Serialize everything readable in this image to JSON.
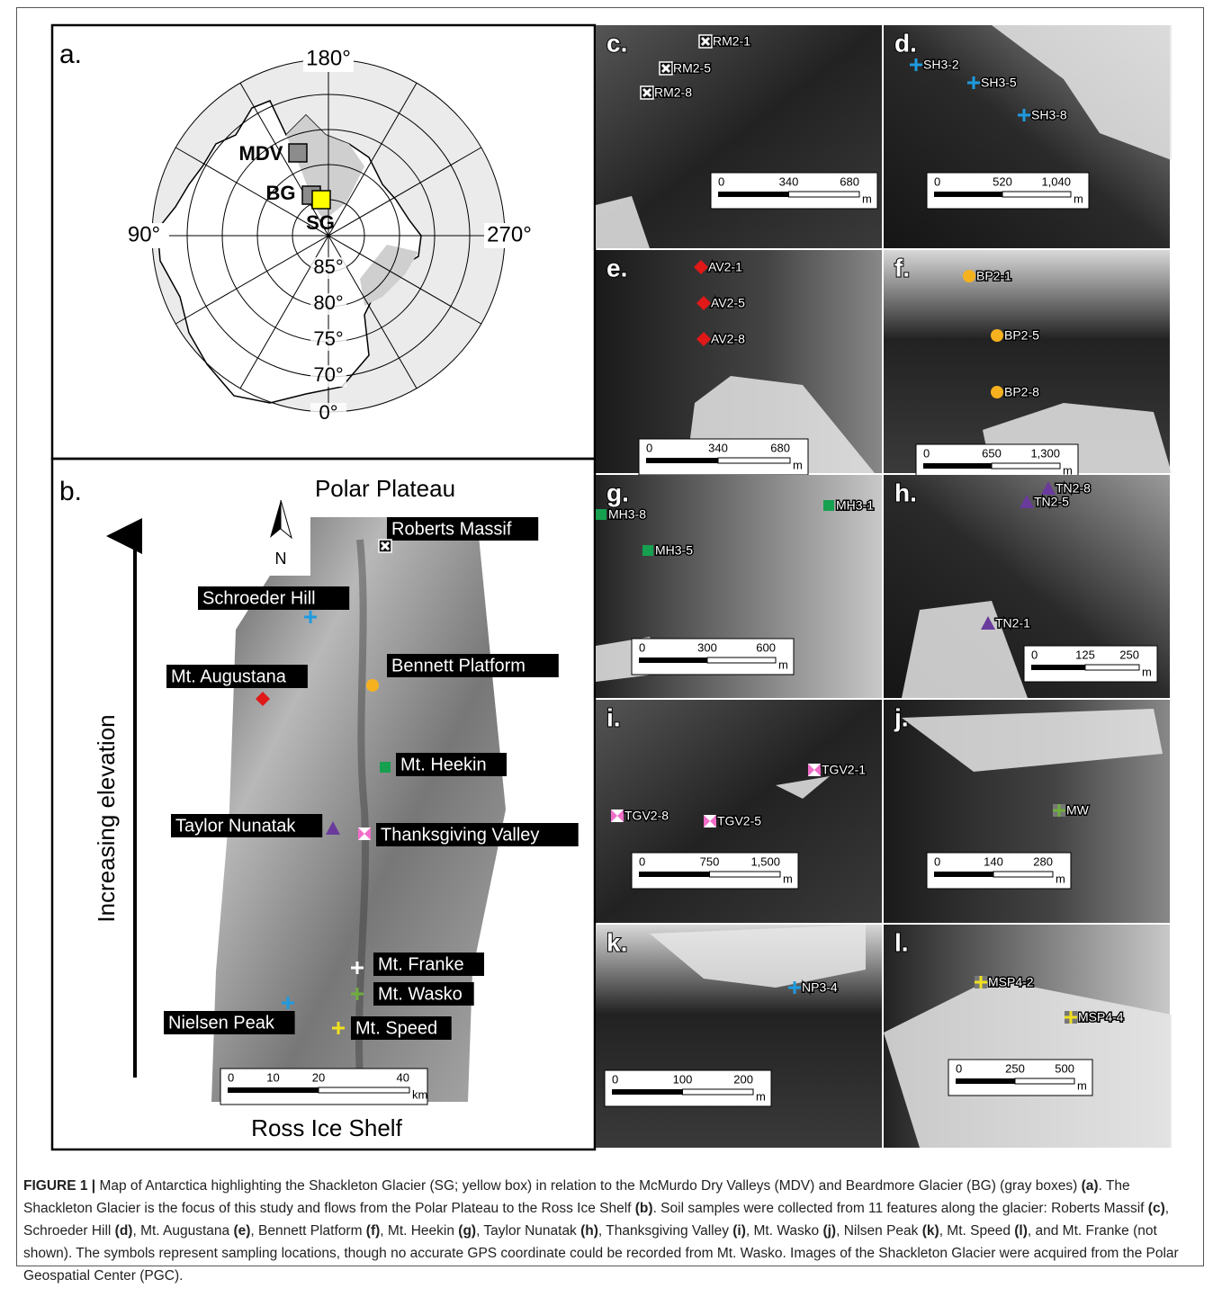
{
  "panel_a": {
    "label": "a.",
    "lon_labels": [
      "180°",
      "90°",
      "270°"
    ],
    "lat_labels": [
      "85°",
      "80°",
      "75°",
      "70°",
      "0°"
    ],
    "boxes": [
      {
        "name": "MDV",
        "color": "#8c8c8c"
      },
      {
        "name": "BG",
        "color": "#8c8c8c"
      },
      {
        "name": "SG",
        "color": "#ffff00"
      }
    ]
  },
  "panel_b": {
    "label": "b.",
    "top": "Polar Plateau",
    "bottom": "Ross Ice Shelf",
    "axis": "Increasing elevation",
    "north": "N",
    "sites": [
      {
        "name": "Roberts Massif",
        "marker": "boxed-x",
        "color": "#ffffff"
      },
      {
        "name": "Schroeder Hill",
        "marker": "plus",
        "color": "#1e9be0"
      },
      {
        "name": "Mt. Augustana",
        "marker": "diamond",
        "color": "#e01818"
      },
      {
        "name": "Bennett Platform",
        "marker": "circle",
        "color": "#f5b21e"
      },
      {
        "name": "Mt. Heekin",
        "marker": "square",
        "color": "#16a050"
      },
      {
        "name": "Taylor Nunatak",
        "marker": "triangle",
        "color": "#6a3b9c"
      },
      {
        "name": "Thanksgiving Valley",
        "marker": "bowtie",
        "color": "#f06ec8"
      },
      {
        "name": "Mt. Franke",
        "marker": "plus",
        "color": "#ffffff"
      },
      {
        "name": "Mt. Wasko",
        "marker": "plus",
        "color": "#6fae3e"
      },
      {
        "name": "Nielsen Peak",
        "marker": "plus",
        "color": "#1e9be0"
      },
      {
        "name": "Mt. Speed",
        "marker": "plus",
        "color": "#f0e020"
      }
    ],
    "scale": {
      "ticks": [
        "0",
        "10",
        "20",
        "40"
      ],
      "unit": "km"
    }
  },
  "panels": [
    {
      "label": "c.",
      "marker": "boxed-x",
      "color": "#ffffff",
      "samples": [
        "RM2-1",
        "RM2-5",
        "RM2-8"
      ],
      "scale": [
        "0",
        "340",
        "680"
      ],
      "unit": "m"
    },
    {
      "label": "d.",
      "marker": "plus",
      "color": "#1e9be0",
      "samples": [
        "SH3-2",
        "SH3-5",
        "SH3-8"
      ],
      "scale": [
        "0",
        "520",
        "1,040"
      ],
      "unit": "m"
    },
    {
      "label": "e.",
      "marker": "diamond",
      "color": "#e01818",
      "samples": [
        "AV2-1",
        "AV2-5",
        "AV2-8"
      ],
      "scale": [
        "0",
        "340",
        "680"
      ],
      "unit": "m"
    },
    {
      "label": "f.",
      "marker": "circle",
      "color": "#f5b21e",
      "samples": [
        "BP2-1",
        "BP2-5",
        "BP2-8"
      ],
      "scale": [
        "0",
        "650",
        "1,300"
      ],
      "unit": "m"
    },
    {
      "label": "g.",
      "marker": "square",
      "color": "#16a050",
      "samples": [
        "MH3-8",
        "MH3-5",
        "MH3-1"
      ],
      "scale": [
        "0",
        "300",
        "600"
      ],
      "unit": "m"
    },
    {
      "label": "h.",
      "marker": "triangle",
      "color": "#6a3b9c",
      "samples": [
        "TN2-8",
        "TN2-5",
        "TN2-1"
      ],
      "scale": [
        "0",
        "125",
        "250"
      ],
      "unit": "m"
    },
    {
      "label": "i.",
      "marker": "bowtie",
      "color": "#f06ec8",
      "samples": [
        "TGV2-1",
        "TGV2-8",
        "TGV2-5"
      ],
      "scale": [
        "0",
        "750",
        "1,500"
      ],
      "unit": "m"
    },
    {
      "label": "j.",
      "marker": "boxed-plus",
      "color": "#6fae3e",
      "samples": [
        "MW"
      ],
      "scale": [
        "0",
        "140",
        "280"
      ],
      "unit": "m"
    },
    {
      "label": "k.",
      "marker": "plus",
      "color": "#1e9be0",
      "samples": [
        "NP3-4"
      ],
      "scale": [
        "0",
        "100",
        "200"
      ],
      "unit": "m"
    },
    {
      "label": "l.",
      "marker": "boxed-plus",
      "color": "#f0e020",
      "samples": [
        "MSP4-2",
        "MSP4-4"
      ],
      "scale": [
        "0",
        "250",
        "500"
      ],
      "unit": "m"
    }
  ],
  "caption": [
    {
      "text": "FIGURE 1 |",
      "bold": true
    },
    {
      "text": " Map of Antarctica highlighting the Shackleton Glacier (SG; yellow box) in relation to the McMurdo Dry Valleys (MDV) and Beardmore Glacier (BG) (gray boxes) ",
      "bold": false
    },
    {
      "text": "(a)",
      "bold": true
    },
    {
      "text": ". The Shackleton Glacier is the focus of this study and flows from the Polar Plateau to the Ross Ice Shelf ",
      "bold": false
    },
    {
      "text": "(b)",
      "bold": true
    },
    {
      "text": ". Soil samples were collected from 11 features along the glacier: Roberts Massif ",
      "bold": false
    },
    {
      "text": "(c)",
      "bold": true
    },
    {
      "text": ", Schroeder Hill ",
      "bold": false
    },
    {
      "text": "(d)",
      "bold": true
    },
    {
      "text": ", Mt. Augustana ",
      "bold": false
    },
    {
      "text": "(e)",
      "bold": true
    },
    {
      "text": ", Bennett Platform ",
      "bold": false
    },
    {
      "text": "(f)",
      "bold": true
    },
    {
      "text": ", Mt. Heekin ",
      "bold": false
    },
    {
      "text": "(g)",
      "bold": true
    },
    {
      "text": ", Taylor Nunatak ",
      "bold": false
    },
    {
      "text": "(h)",
      "bold": true
    },
    {
      "text": ", Thanksgiving Valley ",
      "bold": false
    },
    {
      "text": "(i)",
      "bold": true
    },
    {
      "text": ", Mt. Wasko ",
      "bold": false
    },
    {
      "text": "(j)",
      "bold": true
    },
    {
      "text": ", Nilsen Peak ",
      "bold": false
    },
    {
      "text": "(k)",
      "bold": true
    },
    {
      "text": ", Mt. Speed ",
      "bold": false
    },
    {
      "text": "(l)",
      "bold": true
    },
    {
      "text": ", and Mt. Franke (not shown). The symbols represent sampling locations, though no accurate GPS coordinate could be recorded from Mt. Wasko. Images of the Shackleton Glacier were acquired from the Polar Geospatial Center (PGC).",
      "bold": false
    }
  ]
}
